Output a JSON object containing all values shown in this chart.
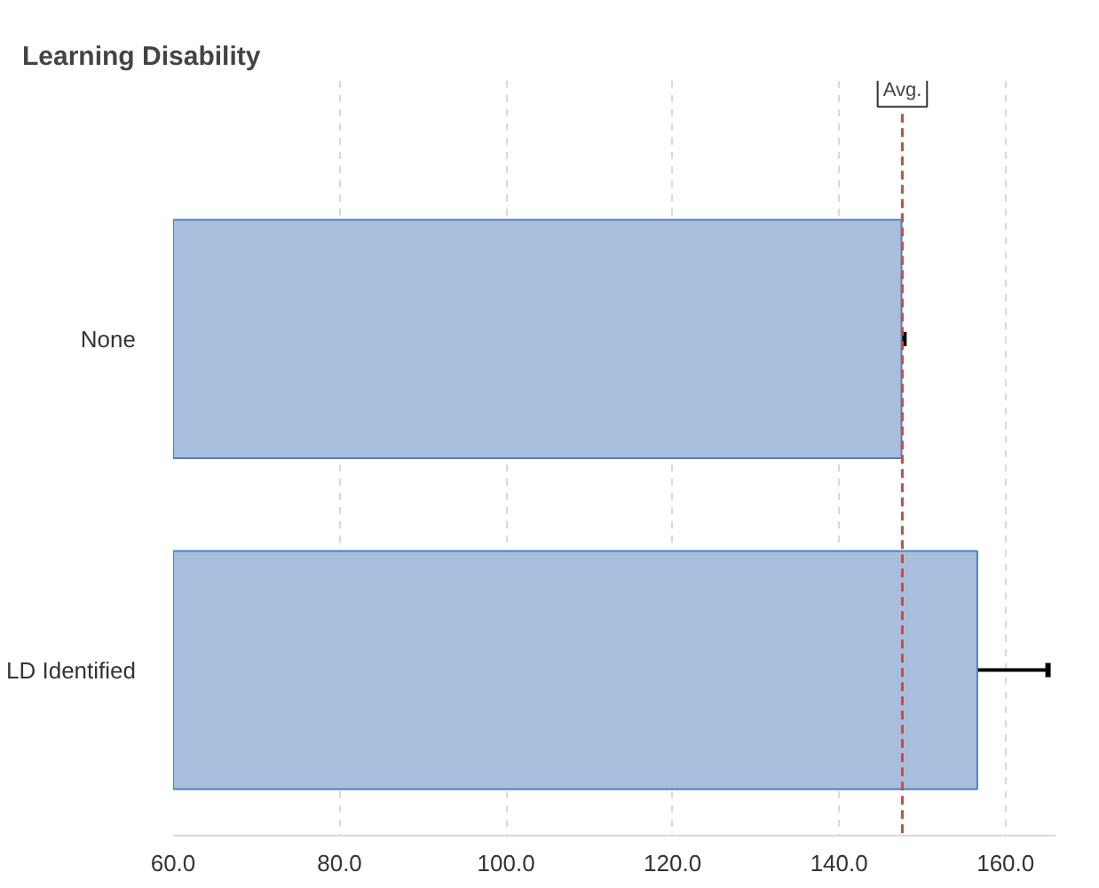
{
  "chart_data": {
    "type": "bar",
    "orientation": "horizontal",
    "title": "Learning Disability",
    "categories": [
      "None",
      "LD Identified"
    ],
    "values": [
      147.5,
      156.6
    ],
    "color": "#a7bfdd",
    "errors": [
      [
        147.3,
        147.8
      ],
      [
        147.4,
        165.1
      ]
    ],
    "xlim": [
      60,
      166
    ],
    "xticks": [
      {
        "value": 60,
        "label": "60.0"
      },
      {
        "value": 80,
        "label": "80.0"
      },
      {
        "value": 100,
        "label": "100.0"
      },
      {
        "value": 120,
        "label": "120.0"
      },
      {
        "value": 140,
        "label": "140.0"
      },
      {
        "value": 160,
        "label": "160.0"
      }
    ],
    "ref_lines": [
      {
        "axis": "x",
        "value": 147.6,
        "label": "Avg.",
        "color": "#c0504d",
        "line_style": "dashed"
      }
    ],
    "grid": "x"
  }
}
